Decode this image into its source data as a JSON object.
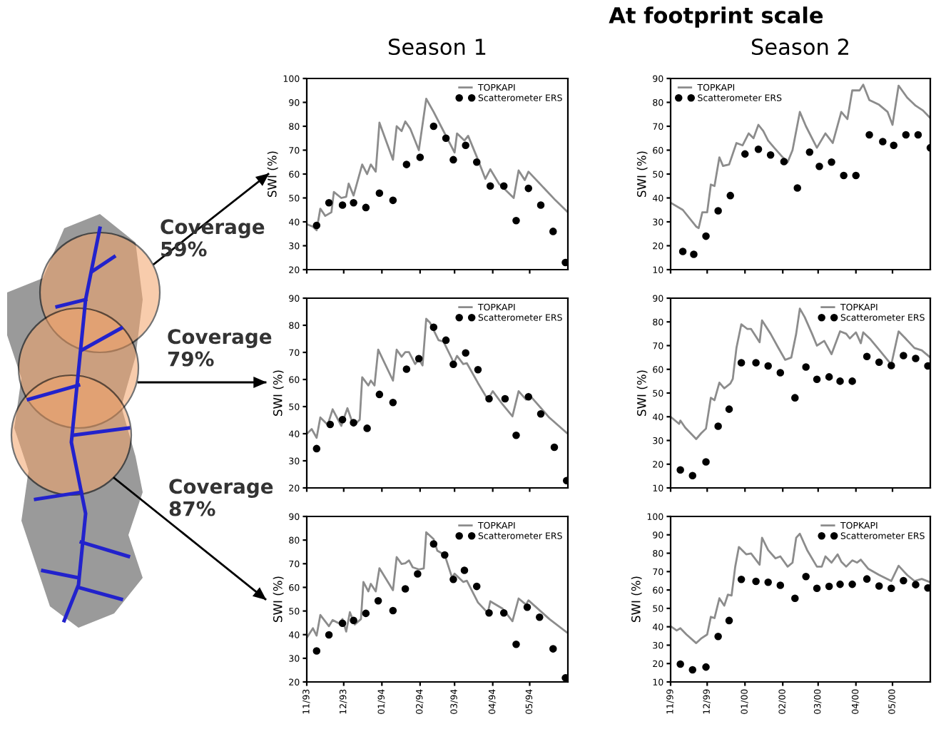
{
  "chart_data": [
    {
      "type": "other",
      "title": "At footprint scale",
      "annotations": [
        "Coverage\n59%",
        "Coverage\n79%",
        "Coverage\n87%"
      ]
    },
    {
      "type": "line",
      "title": "Season 1",
      "ylabel": "SWI (%)",
      "xlim": [
        "1993-11-01",
        "1994-06-01"
      ],
      "ylim": [
        20,
        100
      ],
      "yticks": [
        20,
        30,
        40,
        50,
        60,
        70,
        80,
        90,
        100
      ],
      "xticks": [
        {
          "value": "1993-11-01",
          "label": null
        },
        {
          "value": "1993-12-01",
          "label": null
        },
        {
          "value": "1994-01-01",
          "label": null
        },
        {
          "value": "1994-02-01",
          "label": null
        },
        {
          "value": "1994-03-01",
          "label": null
        },
        {
          "value": "1994-04-01",
          "label": null
        },
        {
          "value": "1994-05-01",
          "label": null
        }
      ],
      "tick_labels": "y",
      "legend": "top right",
      "series": [
        {
          "name": "TOPKAPI",
          "type": "line",
          "color": "#8c8c8c",
          "x": [
            "1993-11-01",
            "1993-11-06",
            "1993-11-09",
            "1993-11-12",
            "1993-11-16",
            "1993-11-21",
            "1993-11-23",
            "1993-11-29",
            "1993-12-03",
            "1993-12-05",
            "1993-12-09",
            "1993-12-16",
            "1993-12-20",
            "1993-12-23",
            "1993-12-27",
            "1993-12-30",
            "1994-01-10",
            "1994-01-13",
            "1994-01-17",
            "1994-01-20",
            "1994-01-24",
            "1994-01-31",
            "1994-02-06",
            "1994-02-12",
            "1994-02-18",
            "1994-02-25",
            "1994-03-01",
            "1994-03-03",
            "1994-03-09",
            "1994-03-12",
            "1994-03-20",
            "1994-03-26",
            "1994-03-30",
            "1994-04-06",
            "1994-04-10",
            "1994-04-18",
            "1994-04-22",
            "1994-04-27",
            "1994-04-30",
            "1994-05-22",
            "1994-06-01"
          ],
          "values": [
            39,
            38,
            36.5,
            45.5,
            42.5,
            44,
            52.5,
            50,
            50.5,
            56,
            51,
            64,
            60,
            64,
            61,
            81.5,
            66,
            80,
            78,
            82,
            79,
            70,
            91.5,
            86,
            80,
            73,
            69,
            77,
            74,
            76,
            66,
            58,
            62,
            56,
            54,
            50,
            61.5,
            57.5,
            61,
            49,
            44
          ]
        },
        {
          "name": "Scatterometer ERS",
          "type": "scatter",
          "color": "#000000",
          "marker": "circle",
          "x": [
            "1993-11-09",
            "1993-11-19",
            "1993-11-30",
            "1993-12-09",
            "1993-12-19",
            "1993-12-30",
            "1994-01-10",
            "1994-01-21",
            "1994-02-01",
            "1994-02-12",
            "1994-02-22",
            "1994-02-28",
            "1994-03-10",
            "1994-03-19",
            "1994-03-30",
            "1994-04-10",
            "1994-04-20",
            "1994-04-30",
            "1994-05-10",
            "1994-05-20",
            "1994-05-30"
          ],
          "values": [
            38.5,
            48,
            47,
            48,
            46,
            52,
            49,
            64,
            67,
            80,
            75,
            66,
            72,
            65,
            55,
            55,
            40.5,
            54,
            47,
            36,
            23
          ]
        }
      ]
    },
    {
      "type": "line",
      "title": "Season 2",
      "ylabel": "SWI (%)",
      "xlim": [
        "1999-11-01",
        "2000-06-01"
      ],
      "ylim": [
        10,
        90
      ],
      "yticks": [
        10,
        20,
        30,
        40,
        50,
        60,
        70,
        80,
        90
      ],
      "xticks": [
        {
          "value": "1999-11-01",
          "label": null
        },
        {
          "value": "1999-12-01",
          "label": null
        },
        {
          "value": "2000-01-01",
          "label": null
        },
        {
          "value": "2000-02-01",
          "label": null
        },
        {
          "value": "2000-03-01",
          "label": null
        },
        {
          "value": "2000-04-01",
          "label": null
        },
        {
          "value": "2000-05-01",
          "label": null
        }
      ],
      "tick_labels": "y",
      "legend": "top left",
      "series": [
        {
          "name": "TOPKAPI",
          "type": "line",
          "color": "#8c8c8c",
          "x": [
            "1999-11-01",
            "1999-11-11",
            "1999-11-22",
            "1999-11-24",
            "1999-11-27",
            "1999-12-01",
            "1999-12-04",
            "1999-12-07",
            "1999-12-11",
            "1999-12-14",
            "1999-12-19",
            "1999-12-25",
            "1999-12-30",
            "2000-01-04",
            "2000-01-08",
            "2000-01-12",
            "2000-01-16",
            "2000-01-20",
            "2000-01-25",
            "2000-02-01",
            "2000-02-05",
            "2000-02-09",
            "2000-02-15",
            "2000-02-20",
            "2000-02-26",
            "2000-02-29",
            "2000-03-07",
            "2000-03-13",
            "2000-03-20",
            "2000-03-25",
            "2000-03-29",
            "2000-04-04",
            "2000-04-07",
            "2000-04-12",
            "2000-04-20",
            "2000-04-27",
            "2000-05-01",
            "2000-05-06",
            "2000-05-13",
            "2000-05-20",
            "2000-05-26",
            "2000-06-01"
          ],
          "values": [
            38,
            35,
            28,
            27.4,
            34,
            34,
            45.6,
            45,
            57,
            53.4,
            54,
            63,
            62,
            67,
            65,
            70.6,
            68,
            64,
            61,
            57,
            55,
            60,
            76,
            70,
            64,
            61,
            67,
            63,
            76,
            73,
            85,
            85,
            87.4,
            81,
            79,
            76,
            70.6,
            87,
            82,
            78.6,
            76.6,
            73.4
          ]
        },
        {
          "name": "Scatterometer ERS",
          "type": "scatter",
          "color": "#000000",
          "marker": "circle",
          "x": [
            "1999-11-11",
            "1999-11-20",
            "1999-11-30",
            "1999-12-10",
            "1999-12-20",
            "2000-01-01",
            "2000-01-12",
            "2000-01-22",
            "2000-02-02",
            "2000-02-13",
            "2000-02-23",
            "2000-03-02",
            "2000-03-12",
            "2000-03-22",
            "2000-04-01",
            "2000-04-12",
            "2000-04-23",
            "2000-05-02",
            "2000-05-12",
            "2000-05-22",
            "2000-06-01"
          ],
          "values": [
            17.6,
            16.4,
            24,
            34.6,
            41,
            58.4,
            60.4,
            58,
            55.2,
            44.2,
            59.2,
            53.2,
            55,
            49.4,
            49.4,
            66.4,
            63.6,
            62,
            66.4,
            66.4,
            61
          ]
        }
      ]
    },
    {
      "type": "line",
      "ylabel": "SWI (%)",
      "xlim": [
        "1993-11-01",
        "1994-06-01"
      ],
      "ylim": [
        20,
        90
      ],
      "yticks": [
        20,
        30,
        40,
        50,
        60,
        70,
        80,
        90
      ],
      "xticks": [
        {
          "value": "1993-11-01",
          "label": null
        },
        {
          "value": "1993-12-01",
          "label": null
        },
        {
          "value": "1994-01-01",
          "label": null
        },
        {
          "value": "1994-02-01",
          "label": null
        },
        {
          "value": "1994-03-01",
          "label": null
        },
        {
          "value": "1994-04-01",
          "label": null
        },
        {
          "value": "1994-05-01",
          "label": null
        }
      ],
      "tick_labels": "y",
      "legend": "top right",
      "series": [
        {
          "name": "TOPKAPI",
          "type": "line",
          "color": "#8c8c8c",
          "x": [
            "1993-11-01",
            "1993-11-05",
            "1993-11-09",
            "1993-11-12",
            "1993-11-18",
            "1993-11-22",
            "1993-11-29",
            "1993-12-04",
            "1993-12-09",
            "1993-12-14",
            "1993-12-16",
            "1993-12-21",
            "1993-12-23",
            "1993-12-26",
            "1993-12-29",
            "1994-01-10",
            "1994-01-13",
            "1994-01-17",
            "1994-01-20",
            "1994-01-23",
            "1994-01-28",
            "1994-01-31",
            "1994-02-03",
            "1994-02-06",
            "1994-02-09",
            "1994-02-16",
            "1994-02-20",
            "1994-02-27",
            "1994-02-28",
            "1994-03-03",
            "1994-03-08",
            "1994-03-11",
            "1994-03-20",
            "1994-03-28",
            "1994-04-01",
            "1994-04-09",
            "1994-04-17",
            "1994-04-22",
            "1994-04-28",
            "1994-04-30",
            "1994-05-17",
            "1994-05-31"
          ],
          "values": [
            39.9,
            41.7,
            38.5,
            46,
            43.3,
            49,
            42.9,
            49.4,
            42.9,
            45.2,
            60.8,
            57.8,
            59.6,
            57.8,
            71,
            59.6,
            71,
            68.4,
            70.1,
            70.1,
            65.7,
            67.5,
            65.2,
            82.4,
            81,
            74.5,
            74,
            67.5,
            65.7,
            68.7,
            65.7,
            66,
            58.7,
            52.6,
            55.7,
            50.8,
            46.4,
            55.7,
            52.6,
            54.7,
            45.9,
            40.3
          ]
        },
        {
          "name": "Scatterometer ERS",
          "type": "scatter",
          "color": "#000000",
          "marker": "circle",
          "x": [
            "1993-11-09",
            "1993-11-20",
            "1993-11-30",
            "1993-12-09",
            "1993-12-20",
            "1993-12-30",
            "1994-01-10",
            "1994-01-21",
            "1994-01-31",
            "1994-02-12",
            "1994-02-22",
            "1994-02-28",
            "1994-03-10",
            "1994-03-20",
            "1994-03-29",
            "1994-04-11",
            "1994-04-20",
            "1994-04-30",
            "1994-05-10",
            "1994-05-21",
            "1994-05-31"
          ],
          "values": [
            34.5,
            43.4,
            45.2,
            44.1,
            42,
            54.5,
            51.5,
            63.8,
            67.7,
            79.3,
            74.5,
            65.6,
            69.8,
            63.6,
            52.9,
            52.9,
            39.4,
            53.6,
            47.3,
            35,
            22.7
          ]
        }
      ]
    },
    {
      "type": "line",
      "ylabel": "SWI (%)",
      "xlim": [
        "1999-11-01",
        "2000-06-01"
      ],
      "ylim": [
        10,
        90
      ],
      "yticks": [
        10,
        20,
        30,
        40,
        50,
        60,
        70,
        80,
        90
      ],
      "xticks": [
        {
          "value": "1999-11-01",
          "label": null
        },
        {
          "value": "1999-12-01",
          "label": null
        },
        {
          "value": "2000-01-01",
          "label": null
        },
        {
          "value": "2000-02-01",
          "label": null
        },
        {
          "value": "2000-03-01",
          "label": null
        },
        {
          "value": "2000-04-01",
          "label": null
        },
        {
          "value": "2000-05-01",
          "label": null
        }
      ],
      "tick_labels": "y",
      "legend": "top right",
      "series": [
        {
          "name": "TOPKAPI",
          "type": "line",
          "color": "#8c8c8c",
          "x": [
            "1999-11-01",
            "1999-11-08",
            "1999-11-09",
            "1999-11-13",
            "1999-11-22",
            "1999-11-26",
            "1999-11-30",
            "1999-12-04",
            "1999-12-07",
            "1999-12-11",
            "1999-12-15",
            "1999-12-20",
            "1999-12-22",
            "1999-12-25",
            "1999-12-29",
            "2000-01-03",
            "2000-01-06",
            "2000-01-13",
            "2000-01-15",
            "2000-01-22",
            "2000-01-28",
            "2000-02-03",
            "2000-02-08",
            "2000-02-12",
            "2000-02-15",
            "2000-02-19",
            "2000-02-25",
            "2000-02-29",
            "2000-03-06",
            "2000-03-12",
            "2000-03-19",
            "2000-03-24",
            "2000-03-27",
            "2000-04-01",
            "2000-04-05",
            "2000-04-07",
            "2000-04-13",
            "2000-04-22",
            "2000-04-30",
            "2000-05-06",
            "2000-05-11",
            "2000-05-19",
            "2000-05-25",
            "2000-06-01"
          ],
          "values": [
            40,
            37,
            38.4,
            35.4,
            30.6,
            33,
            35,
            48,
            47,
            54.4,
            52,
            54,
            56,
            69,
            79,
            77,
            77,
            71.4,
            80.6,
            75,
            69.4,
            64,
            65,
            75,
            85.6,
            82,
            75,
            70,
            72,
            66.4,
            76,
            75,
            73,
            75.6,
            71,
            75.6,
            72.6,
            67,
            62,
            76,
            73.4,
            69,
            68,
            65
          ]
        },
        {
          "name": "Scatterometer ERS",
          "type": "scatter",
          "color": "#000000",
          "marker": "circle",
          "x": [
            "1999-11-09",
            "1999-11-19",
            "1999-11-30",
            "1999-12-10",
            "1999-12-19",
            "1999-12-29",
            "2000-01-10",
            "2000-01-20",
            "2000-01-30",
            "2000-02-11",
            "2000-02-20",
            "2000-02-29",
            "2000-03-10",
            "2000-03-19",
            "2000-03-29",
            "2000-04-10",
            "2000-04-20",
            "2000-04-30",
            "2000-05-10",
            "2000-05-20",
            "2000-05-30"
          ],
          "values": [
            17.6,
            15.2,
            21,
            36,
            43.2,
            62.8,
            62.8,
            61.4,
            58.6,
            48,
            61,
            55.8,
            56.8,
            55,
            55,
            65.4,
            63,
            61.6,
            65.8,
            64.6,
            61.4
          ]
        }
      ]
    },
    {
      "type": "line",
      "ylabel": "SWI (%)",
      "xlim": [
        "1993-11-01",
        "1994-06-01"
      ],
      "ylim": [
        20,
        90
      ],
      "yticks": [
        20,
        30,
        40,
        50,
        60,
        70,
        80,
        90
      ],
      "xticks": [
        {
          "value": "1993-11-01",
          "label": "11/93"
        },
        {
          "value": "1993-12-01",
          "label": "12/93"
        },
        {
          "value": "1994-01-01",
          "label": "01/94"
        },
        {
          "value": "1994-02-01",
          "label": "02/94"
        },
        {
          "value": "1994-03-01",
          "label": "03/94"
        },
        {
          "value": "1994-04-01",
          "label": "04/94"
        },
        {
          "value": "1994-05-01",
          "label": "05/94"
        }
      ],
      "legend": "top right",
      "series": [
        {
          "name": "TOPKAPI",
          "type": "line",
          "color": "#8c8c8c",
          "x": [
            "1993-11-01",
            "1993-11-06",
            "1993-11-09",
            "1993-11-12",
            "1993-11-19",
            "1993-11-22",
            "1993-11-27",
            "1993-11-30",
            "1993-12-03",
            "1993-12-06",
            "1993-12-10",
            "1993-12-15",
            "1993-12-17",
            "1993-12-21",
            "1993-12-23",
            "1993-12-27",
            "1993-12-30",
            "1994-01-10",
            "1994-01-13",
            "1994-01-17",
            "1994-01-20",
            "1994-01-23",
            "1994-01-26",
            "1994-01-31",
            "1994-02-04",
            "1994-02-06",
            "1994-02-12",
            "1994-02-15",
            "1994-02-21",
            "1994-02-27",
            "1994-03-01",
            "1994-03-08",
            "1994-03-11",
            "1994-03-20",
            "1994-03-28",
            "1994-03-30",
            "1994-04-09",
            "1994-04-17",
            "1994-04-22",
            "1994-04-28",
            "1994-04-30",
            "1994-05-17",
            "1994-05-31"
          ],
          "values": [
            38.7,
            42.7,
            39.6,
            48.3,
            43.6,
            46.2,
            44.8,
            46.6,
            41.3,
            49.5,
            44.3,
            46.6,
            62.3,
            58.3,
            61.5,
            58.3,
            68.1,
            58.8,
            72.8,
            69.9,
            70.2,
            71.4,
            68.5,
            67.6,
            68,
            83.3,
            80.4,
            75.5,
            73.7,
            64.1,
            65.8,
            62.3,
            62.8,
            53.6,
            49.2,
            54.1,
            51,
            45.7,
            55.3,
            52.7,
            54.5,
            46.6,
            41
          ]
        },
        {
          "name": "Scatterometer ERS",
          "type": "scatter",
          "color": "#000000",
          "marker": "circle",
          "x": [
            "1993-11-09",
            "1993-11-19",
            "1993-11-30",
            "1993-12-09",
            "1993-12-19",
            "1993-12-29",
            "1994-01-10",
            "1994-01-20",
            "1994-01-30",
            "1994-02-12",
            "1994-02-21",
            "1994-02-28",
            "1994-03-09",
            "1994-03-19",
            "1994-03-29",
            "1994-04-10",
            "1994-04-20",
            "1994-04-29",
            "1994-05-09",
            "1994-05-20",
            "1994-05-30"
          ],
          "values": [
            33.1,
            39.9,
            44.8,
            46,
            49,
            54.3,
            50.2,
            59.4,
            65.7,
            78.4,
            73.7,
            63.4,
            67.2,
            60.4,
            49.2,
            49.2,
            35.9,
            51.6,
            47.4,
            34,
            21.7
          ]
        }
      ]
    },
    {
      "type": "line",
      "ylabel": "SWI (%)",
      "xlim": [
        "1999-11-01",
        "2000-06-01"
      ],
      "ylim": [
        10,
        100
      ],
      "yticks": [
        10,
        20,
        30,
        40,
        50,
        60,
        70,
        80,
        90,
        100
      ],
      "xticks": [
        {
          "value": "1999-11-01",
          "label": "11/99"
        },
        {
          "value": "1999-12-01",
          "label": "12/99"
        },
        {
          "value": "2000-01-01",
          "label": "01/00"
        },
        {
          "value": "2000-02-01",
          "label": "02/00"
        },
        {
          "value": "2000-03-01",
          "label": "03/00"
        },
        {
          "value": "2000-04-01",
          "label": "04/00"
        },
        {
          "value": "2000-05-01",
          "label": "05/00"
        }
      ],
      "legend": "top right",
      "series": [
        {
          "name": "TOPKAPI",
          "type": "line",
          "color": "#8c8c8c",
          "x": [
            "1999-11-01",
            "1999-11-06",
            "1999-11-09",
            "1999-11-14",
            "1999-11-22",
            "1999-11-26",
            "1999-12-01",
            "1999-12-04",
            "1999-12-07",
            "1999-12-11",
            "1999-12-15",
            "1999-12-18",
            "1999-12-21",
            "1999-12-24",
            "1999-12-27",
            "2000-01-02",
            "2000-01-06",
            "2000-01-13",
            "2000-01-15",
            "2000-01-20",
            "2000-01-26",
            "2000-01-30",
            "2000-02-05",
            "2000-02-09",
            "2000-02-12",
            "2000-02-15",
            "2000-02-21",
            "2000-02-29",
            "2000-03-04",
            "2000-03-07",
            "2000-03-12",
            "2000-03-17",
            "2000-03-20",
            "2000-03-24",
            "2000-03-29",
            "2000-04-02",
            "2000-04-05",
            "2000-04-11",
            "2000-04-20",
            "2000-04-30",
            "2000-05-06",
            "2000-05-13",
            "2000-05-19",
            "2000-05-25",
            "2000-06-01"
          ],
          "values": [
            40.3,
            38,
            39.2,
            35.8,
            31.1,
            33.6,
            35.8,
            45.4,
            44.7,
            55.5,
            51.5,
            57.5,
            57,
            72.7,
            83.4,
            79.4,
            79.9,
            73.8,
            88.4,
            81.7,
            77.2,
            78.3,
            72.7,
            74.9,
            88.4,
            90.6,
            81.7,
            72.7,
            72.7,
            78.3,
            74.9,
            79.4,
            75.4,
            72.7,
            76.1,
            74.9,
            76.5,
            71.6,
            68.2,
            64.9,
            73.2,
            68.2,
            64.9,
            66,
            64.2
          ]
        },
        {
          "name": "Scatterometer ERS",
          "type": "scatter",
          "color": "#000000",
          "marker": "circle",
          "x": [
            "1999-11-09",
            "1999-11-19",
            "1999-11-30",
            "1999-12-10",
            "1999-12-19",
            "1999-12-29",
            "2000-01-10",
            "2000-01-20",
            "2000-01-30",
            "2000-02-11",
            "2000-02-20",
            "2000-02-29",
            "2000-03-10",
            "2000-03-19",
            "2000-03-29",
            "2000-04-10",
            "2000-04-20",
            "2000-04-30",
            "2000-05-10",
            "2000-05-20",
            "2000-05-30"
          ],
          "values": [
            19.7,
            16.6,
            18.1,
            34.7,
            43.4,
            65.8,
            64.7,
            64.2,
            62.6,
            55.5,
            67.3,
            60.9,
            62,
            63.1,
            63.1,
            66,
            62.2,
            60.9,
            65.1,
            62.9,
            61.1
          ]
        }
      ]
    }
  ]
}
